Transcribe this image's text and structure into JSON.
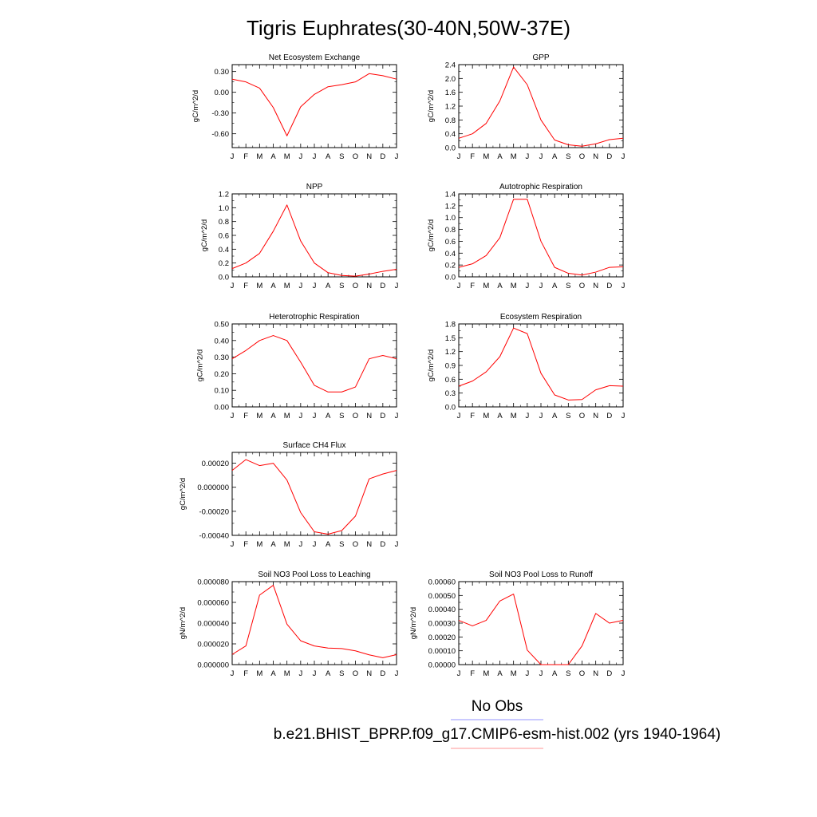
{
  "title": "Tigris Euphrates(30-40N,50W-37E)",
  "months": [
    "J",
    "F",
    "M",
    "A",
    "M",
    "J",
    "J",
    "A",
    "S",
    "O",
    "N",
    "D",
    "J"
  ],
  "colors": {
    "model": "#ff0000",
    "obs": "#0000ff"
  },
  "legend": {
    "obs_label": "No Obs",
    "model_label": "b.e21.BHIST_BPRP.f09_g17.CMIP6-esm-hist.002 (yrs 1940-1964)"
  },
  "chart_data": [
    {
      "type": "line",
      "title": "Net Ecosystem Exchange",
      "ylabel": "gC/m^2/d",
      "ylim": [
        -0.8,
        0.4
      ],
      "yticks": [
        -0.6,
        -0.3,
        0.0,
        0.3
      ],
      "ytick_labels": [
        "-0.60",
        "-0.30",
        "0.00",
        "0.30"
      ],
      "values": [
        0.19,
        0.15,
        0.06,
        -0.22,
        -0.63,
        -0.21,
        -0.03,
        0.08,
        0.11,
        0.15,
        0.27,
        0.24,
        0.19
      ]
    },
    {
      "type": "line",
      "title": "GPP",
      "ylabel": "gC/m^2/d",
      "ylim": [
        0,
        2.4
      ],
      "yticks": [
        0,
        0.4,
        0.8,
        1.2,
        1.6,
        2.0,
        2.4
      ],
      "ytick_labels": [
        "0.0",
        "0.4",
        "0.8",
        "1.2",
        "1.6",
        "2.0",
        "2.4"
      ],
      "values": [
        0.27,
        0.4,
        0.7,
        1.35,
        2.33,
        1.82,
        0.8,
        0.22,
        0.08,
        0.04,
        0.11,
        0.23,
        0.27
      ]
    },
    {
      "type": "line",
      "title": "NPP",
      "ylabel": "gC/m^2/d",
      "ylim": [
        0,
        1.2
      ],
      "yticks": [
        0,
        0.2,
        0.4,
        0.6,
        0.8,
        1.0,
        1.2
      ],
      "ytick_labels": [
        "0.0",
        "0.2",
        "0.4",
        "0.6",
        "0.8",
        "1.0",
        "1.2"
      ],
      "values": [
        0.12,
        0.2,
        0.34,
        0.66,
        1.04,
        0.52,
        0.2,
        0.06,
        0.02,
        0.01,
        0.04,
        0.08,
        0.11
      ]
    },
    {
      "type": "line",
      "title": "Autotrophic Respiration",
      "ylabel": "gC/m^2/d",
      "ylim": [
        0,
        1.4
      ],
      "yticks": [
        0,
        0.2,
        0.4,
        0.6,
        0.8,
        1.0,
        1.2,
        1.4
      ],
      "ytick_labels": [
        "0.0",
        "0.2",
        "0.4",
        "0.6",
        "0.8",
        "1.0",
        "1.2",
        "1.4"
      ],
      "values": [
        0.16,
        0.22,
        0.36,
        0.66,
        1.31,
        1.31,
        0.6,
        0.16,
        0.06,
        0.03,
        0.08,
        0.16,
        0.17
      ]
    },
    {
      "type": "line",
      "title": "Heterotrophic Respiration",
      "ylabel": "gC/m^2/d",
      "ylim": [
        0,
        0.5
      ],
      "yticks": [
        0,
        0.1,
        0.2,
        0.3,
        0.4,
        0.5
      ],
      "ytick_labels": [
        "0.00",
        "0.10",
        "0.20",
        "0.30",
        "0.40",
        "0.50"
      ],
      "values": [
        0.29,
        0.34,
        0.4,
        0.43,
        0.4,
        0.27,
        0.13,
        0.09,
        0.09,
        0.12,
        0.29,
        0.31,
        0.29
      ]
    },
    {
      "type": "line",
      "title": "Ecosystem Respiration",
      "ylabel": "gC/m^2/d",
      "ylim": [
        0,
        1.8
      ],
      "yticks": [
        0,
        0.3,
        0.6,
        0.9,
        1.2,
        1.5,
        1.8
      ],
      "ytick_labels": [
        "0.0",
        "0.3",
        "0.6",
        "0.9",
        "1.2",
        "1.5",
        "1.8"
      ],
      "values": [
        0.45,
        0.56,
        0.76,
        1.09,
        1.71,
        1.59,
        0.73,
        0.26,
        0.15,
        0.16,
        0.37,
        0.46,
        0.45
      ]
    },
    {
      "type": "line",
      "title": "Surface CH4 Flux",
      "ylabel": "gC/m^2/d",
      "ylim": [
        -0.0004,
        0.00029
      ],
      "yticks": [
        -0.0004,
        -0.0002,
        0.0,
        0.0002
      ],
      "ytick_labels": [
        "-0.00040",
        "-0.00020",
        "0.000000",
        "0.00020"
      ],
      "values": [
        0.00014,
        0.00023,
        0.00018,
        0.0002,
        6e-05,
        -0.00021,
        -0.00037,
        -0.00039,
        -0.00036,
        -0.00024,
        7e-05,
        0.00011,
        0.00014
      ]
    },
    {
      "type": "line",
      "title": "Soil NO3 Pool Loss to Leaching",
      "ylabel": "gN/m^2/d",
      "ylim": [
        0,
        8e-05
      ],
      "yticks": [
        0,
        2e-05,
        4e-05,
        6e-05,
        8e-05
      ],
      "ytick_labels": [
        "0.000000",
        "0.000020",
        "0.000040",
        "0.000060",
        "0.000080"
      ],
      "values": [
        9.8e-06,
        1.8e-05,
        6.7e-05,
        7.65e-05,
        3.9e-05,
        2.3e-05,
        1.8e-05,
        1.6e-05,
        1.55e-05,
        1.33e-05,
        9.4e-06,
        6.6e-06,
        9.6e-06
      ]
    },
    {
      "type": "line",
      "title": "Soil NO3 Pool Loss to Runoff",
      "ylabel": "gN/m^2/d",
      "ylim": [
        0,
        0.0006
      ],
      "yticks": [
        0,
        0.0001,
        0.0002,
        0.0003,
        0.0004,
        0.0005,
        0.0006
      ],
      "ytick_labels": [
        "0.00000",
        "0.00010",
        "0.00020",
        "0.00030",
        "0.00040",
        "0.00050",
        "0.00060"
      ],
      "values": [
        0.00032,
        0.00028,
        0.00032,
        0.00046,
        0.00051,
        0.000105,
        0.0,
        0.0,
        0.0,
        0.000135,
        0.00037,
        0.0003,
        0.00032
      ]
    }
  ]
}
